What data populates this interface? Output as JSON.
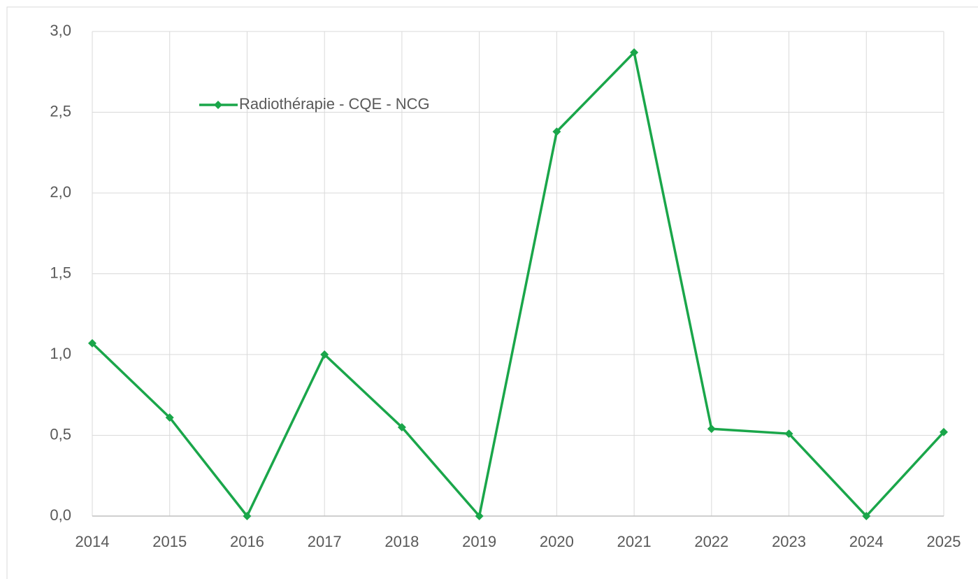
{
  "chart_data": {
    "type": "line",
    "categories": [
      "2014",
      "2015",
      "2016",
      "2017",
      "2018",
      "2019",
      "2020",
      "2021",
      "2022",
      "2023",
      "2024",
      "2025"
    ],
    "series": [
      {
        "name": "Radiothérapie - CQE - NCG",
        "color": "#1aa64a",
        "values": [
          1.07,
          0.61,
          0,
          1.0,
          0.55,
          0,
          2.38,
          2.87,
          0.54,
          0.51,
          0,
          0.52
        ]
      }
    ],
    "ylim": [
      0,
      3
    ],
    "yticks": [
      {
        "value": 0,
        "label": "0,0"
      },
      {
        "value": 0.5,
        "label": "0,5"
      },
      {
        "value": 1,
        "label": "1,0"
      },
      {
        "value": 1.5,
        "label": "1,5"
      },
      {
        "value": 2,
        "label": "2,0"
      },
      {
        "value": 2.5,
        "label": "2,5"
      },
      {
        "value": 3,
        "label": "3,0"
      }
    ],
    "grid": true,
    "legend": "top-left"
  }
}
